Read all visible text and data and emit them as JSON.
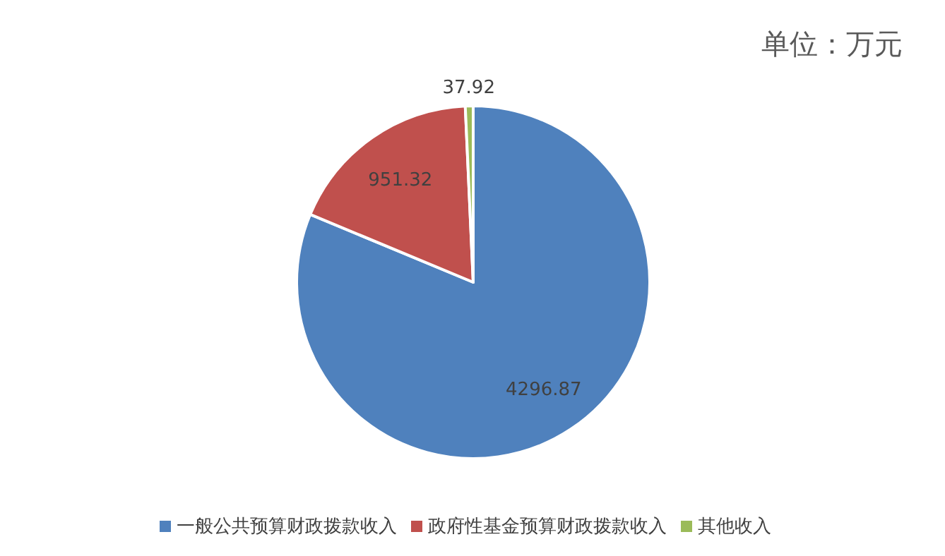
{
  "chart_data": {
    "type": "pie",
    "categories": [
      "一般公共预算财政拨款收入",
      "政府性基金预算财政拨款收入",
      "其他收入"
    ],
    "values": [
      4296.87,
      951.32,
      37.92
    ],
    "colors": [
      "#4f81bd",
      "#c0504d",
      "#9bbb59"
    ],
    "data_labels": true,
    "legend": "bottom",
    "annotations": [
      "单位：万元"
    ]
  }
}
